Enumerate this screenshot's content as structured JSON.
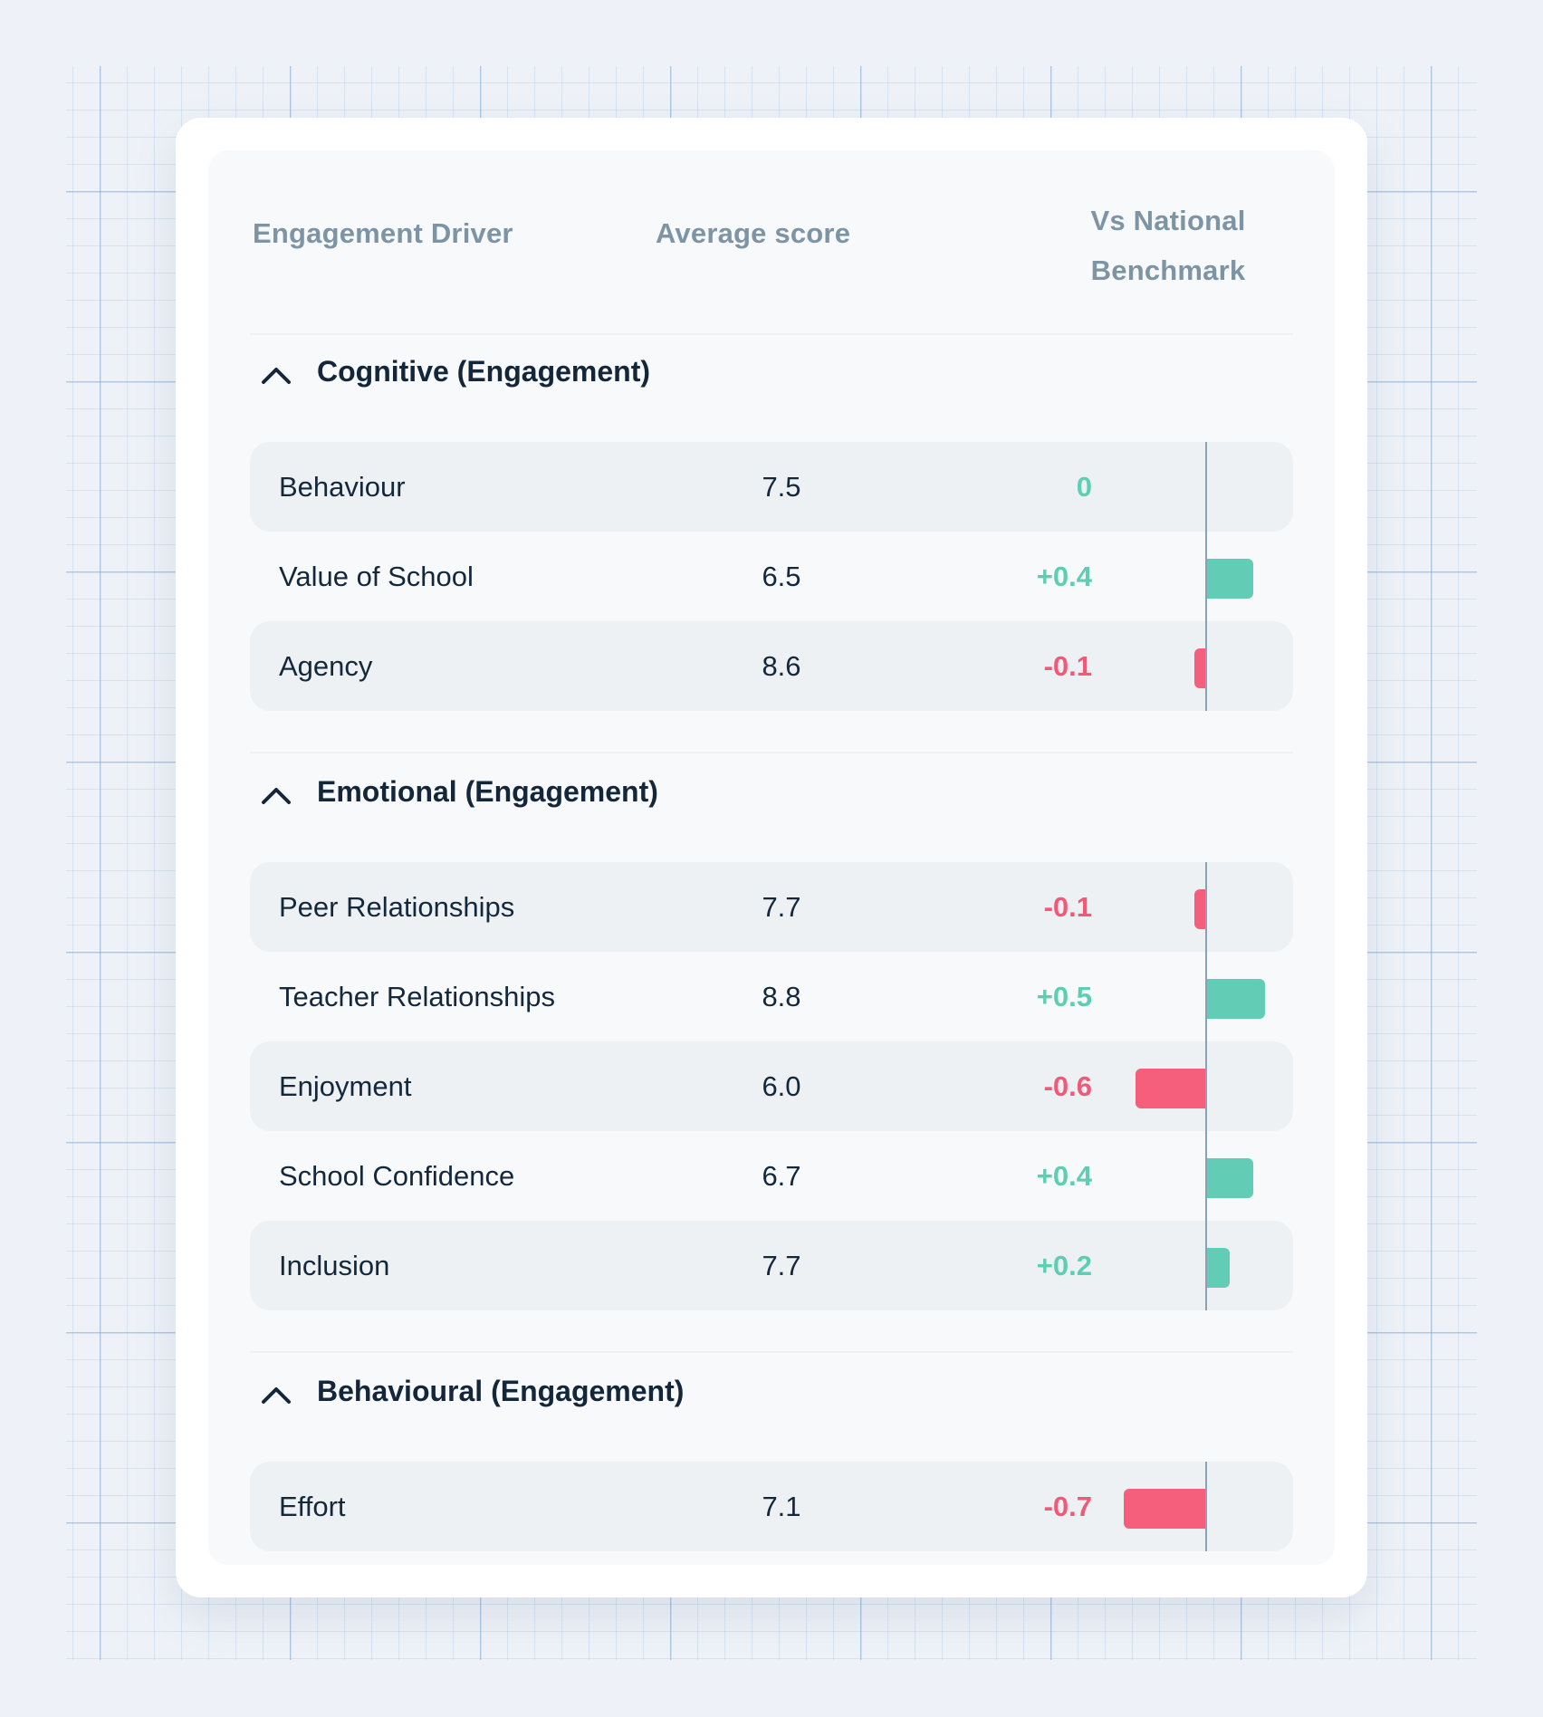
{
  "table": {
    "headers": {
      "driver": "Engagement Driver",
      "score": "Average score",
      "benchmark_line1": "Vs National",
      "benchmark_line2": "Benchmark"
    },
    "groups": [
      {
        "title": "Cognitive (Engagement)",
        "rows": [
          {
            "name": "Behaviour",
            "score": "7.5",
            "delta": "0",
            "delta_value": 0
          },
          {
            "name": "Value of School",
            "score": "6.5",
            "delta": "+0.4",
            "delta_value": 0.4
          },
          {
            "name": "Agency",
            "score": "8.6",
            "delta": "-0.1",
            "delta_value": -0.1
          }
        ]
      },
      {
        "title": "Emotional (Engagement)",
        "rows": [
          {
            "name": "Peer Relationships",
            "score": "7.7",
            "delta": "-0.1",
            "delta_value": -0.1
          },
          {
            "name": "Teacher Relationships",
            "score": "8.8",
            "delta": "+0.5",
            "delta_value": 0.5
          },
          {
            "name": "Enjoyment",
            "score": "6.0",
            "delta": "-0.6",
            "delta_value": -0.6
          },
          {
            "name": "School Confidence",
            "score": "6.7",
            "delta": "+0.4",
            "delta_value": 0.4
          },
          {
            "name": "Inclusion",
            "score": "7.7",
            "delta": "+0.2",
            "delta_value": 0.2
          }
        ]
      },
      {
        "title": "Behavioural (Engagement)",
        "rows": [
          {
            "name": "Effort",
            "score": "7.1",
            "delta": "-0.7",
            "delta_value": -0.7
          }
        ]
      }
    ]
  },
  "colors": {
    "positive": "#5ecdb2",
    "negative": "#f05a78",
    "text_dark": "#14283c",
    "header_text": "#7d94a5"
  },
  "icons": {
    "group_toggle": "chevron-up-icon"
  }
}
